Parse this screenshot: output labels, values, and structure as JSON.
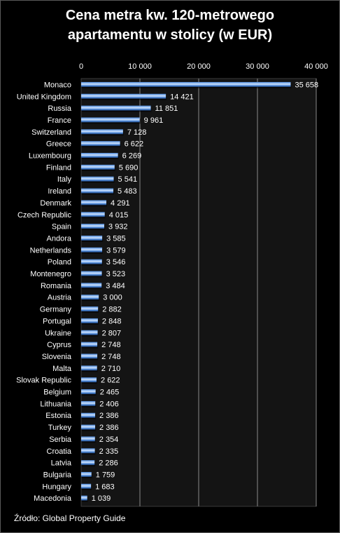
{
  "chart_data": {
    "type": "bar",
    "orientation": "horizontal",
    "title": "Cena metra kw. 120-metrowego apartamentu w stolicy (w EUR)",
    "title_lines": [
      "Cena metra kw. 120-metrowego",
      "apartamentu w stolicy (w EUR)"
    ],
    "categories": [
      "Monaco",
      "United Kingdom",
      "Russia",
      "France",
      "Switzerland",
      "Greece",
      "Luxembourg",
      "Finland",
      "Italy",
      "Ireland",
      "Denmark",
      "Czech Republic",
      "Spain",
      "Andora",
      "Netherlands",
      "Poland",
      "Montenegro",
      "Romania",
      "Austria",
      "Germany",
      "Portugal",
      "Ukraine",
      "Cyprus",
      "Slovenia",
      "Malta",
      "Slovak Republic",
      "Belgium",
      "Lithuania",
      "Estonia",
      "Turkey",
      "Serbia",
      "Croatia",
      "Latvia",
      "Bulgaria",
      "Hungary",
      "Macedonia"
    ],
    "values": [
      35658,
      14421,
      11851,
      9961,
      7128,
      6622,
      6269,
      5690,
      5541,
      5483,
      4291,
      4015,
      3932,
      3585,
      3579,
      3546,
      3523,
      3484,
      3000,
      2882,
      2848,
      2807,
      2748,
      2748,
      2710,
      2622,
      2465,
      2406,
      2386,
      2386,
      2354,
      2335,
      2286,
      1759,
      1683,
      1039
    ],
    "value_labels": [
      "35 658",
      "14 421",
      "11 851",
      "9 961",
      "7 128",
      "6 622",
      "6 269",
      "5 690",
      "5 541",
      "5 483",
      "4 291",
      "4 015",
      "3 932",
      "3 585",
      "3 579",
      "3 546",
      "3 523",
      "3 484",
      "3 000",
      "2 882",
      "2 848",
      "2 807",
      "2 748",
      "2 748",
      "2 710",
      "2 622",
      "2 465",
      "2 406",
      "2 386",
      "2 386",
      "2 354",
      "2 335",
      "2 286",
      "1 759",
      "1 683",
      "1 039"
    ],
    "xlim": [
      0,
      40000
    ],
    "x_ticks": [
      0,
      10000,
      20000,
      30000,
      40000
    ],
    "x_tick_labels": [
      "0",
      "10 000",
      "20 000",
      "30 000",
      "40 000"
    ],
    "x_axis_position": "top",
    "grid": true,
    "legend": "none"
  },
  "source": "Źródło: Global Property Guide",
  "colors": {
    "background": "#000000",
    "plot_background": "#141414",
    "gridline": "#8a8a8a",
    "bar_dark": "#1c3f75",
    "bar_mid": "#4a86d6",
    "bar_light": "#cfe4ff",
    "text": "#ffffff"
  }
}
